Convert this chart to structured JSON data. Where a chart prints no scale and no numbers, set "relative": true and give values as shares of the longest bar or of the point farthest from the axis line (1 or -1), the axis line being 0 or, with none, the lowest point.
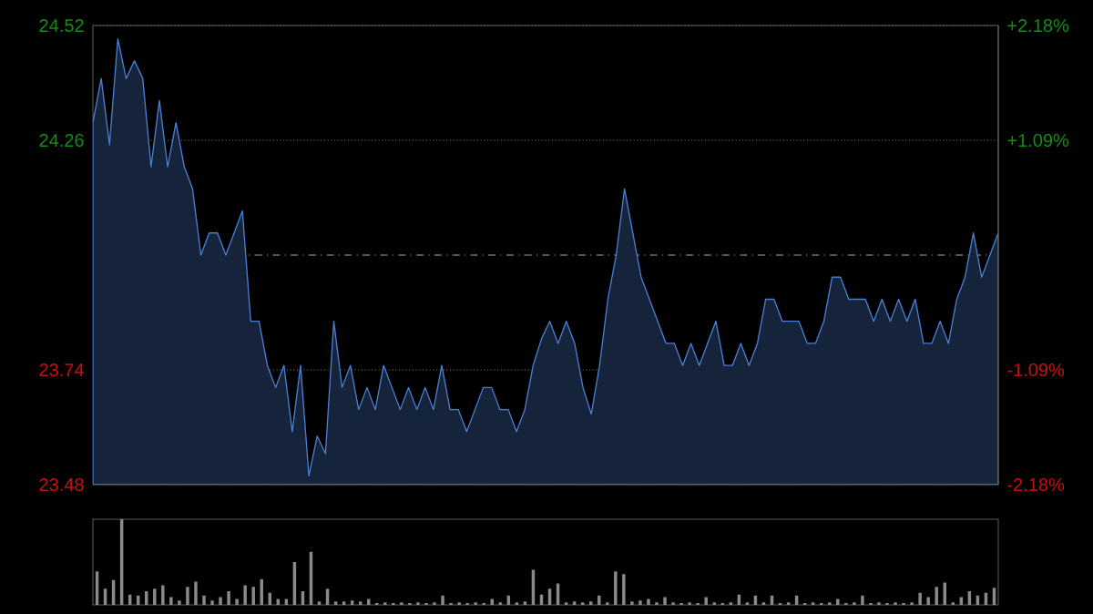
{
  "chart_data": [
    {
      "type": "area",
      "categories": [
        null,
        null,
        null,
        null,
        null,
        null,
        null,
        null,
        null,
        null,
        null,
        null,
        null,
        null,
        null,
        null,
        null,
        null,
        null,
        null,
        null,
        null,
        null,
        null,
        null,
        null,
        null,
        null,
        null,
        null,
        null,
        null,
        null,
        null,
        null,
        null,
        null,
        null,
        null,
        null,
        null,
        null,
        null,
        null,
        null,
        null,
        null,
        null,
        null,
        null,
        null,
        null,
        null,
        null,
        null,
        null,
        null,
        null,
        null,
        null,
        null,
        null,
        null,
        null,
        null,
        null,
        null,
        null,
        null,
        null,
        null,
        null,
        null,
        null,
        null,
        null,
        null,
        null,
        null,
        null,
        null,
        null,
        null,
        null,
        null,
        null,
        null,
        null,
        null,
        null,
        null,
        null,
        null,
        null,
        null,
        null,
        null,
        null,
        null,
        null,
        null,
        null,
        null,
        null,
        null,
        null,
        null,
        null,
        null,
        null
      ],
      "ylim": [
        23.48,
        24.52
      ],
      "yticks": [
        23.48,
        23.74,
        24.26,
        24.52
      ],
      "y2lim": [
        -2.18,
        2.18
      ],
      "y2ticks": [
        {
          "value": -2.18,
          "label": "-2.18%"
        },
        {
          "value": -1.09,
          "label": "-1.09%"
        },
        {
          "value": 1.09,
          "label": "+1.09%"
        },
        {
          "value": 2.18,
          "label": "+2.18%"
        }
      ],
      "grid": "y",
      "ref_lines": [
        {
          "axis": "y",
          "value": 24.0
        }
      ],
      "series": [
        {
          "color": "#4a7fd4",
          "values": [
            24.3,
            24.4,
            24.25,
            24.49,
            24.4,
            24.44,
            24.4,
            24.2,
            24.35,
            24.2,
            24.3,
            24.2,
            24.15,
            24.0,
            24.05,
            24.05,
            24.0,
            24.05,
            24.1,
            23.85,
            23.85,
            23.75,
            23.7,
            23.75,
            23.6,
            23.75,
            23.5,
            23.59,
            23.55,
            23.85,
            23.7,
            23.75,
            23.65,
            23.7,
            23.65,
            23.75,
            23.7,
            23.65,
            23.7,
            23.65,
            23.7,
            23.65,
            23.75,
            23.65,
            23.65,
            23.6,
            23.65,
            23.7,
            23.7,
            23.65,
            23.65,
            23.6,
            23.65,
            23.75,
            23.81,
            23.85,
            23.8,
            23.85,
            23.8,
            23.7,
            23.64,
            23.75,
            23.9,
            24.0,
            24.15,
            24.05,
            23.95,
            23.9,
            23.85,
            23.8,
            23.8,
            23.75,
            23.8,
            23.75,
            23.8,
            23.85,
            23.75,
            23.75,
            23.8,
            23.75,
            23.8,
            23.9,
            23.9,
            23.85,
            23.85,
            23.85,
            23.8,
            23.8,
            23.85,
            23.95,
            23.95,
            23.9,
            23.9,
            23.9,
            23.85,
            23.9,
            23.85,
            23.9,
            23.85,
            23.9,
            23.8,
            23.8,
            23.85,
            23.8,
            23.9,
            23.95,
            24.05,
            23.95,
            24.0,
            24.05
          ]
        }
      ]
    },
    {
      "type": "bar",
      "relative": true,
      "color": "#8a8a8a",
      "categories": [
        null,
        null,
        null,
        null,
        null,
        null,
        null,
        null,
        null,
        null,
        null,
        null,
        null,
        null,
        null,
        null,
        null,
        null,
        null,
        null,
        null,
        null,
        null,
        null,
        null,
        null,
        null,
        null,
        null,
        null,
        null,
        null,
        null,
        null,
        null,
        null,
        null,
        null,
        null,
        null,
        null,
        null,
        null,
        null,
        null,
        null,
        null,
        null,
        null,
        null,
        null,
        null,
        null,
        null,
        null,
        null,
        null,
        null,
        null,
        null,
        null,
        null,
        null,
        null,
        null,
        null,
        null,
        null,
        null,
        null,
        null,
        null,
        null,
        null,
        null,
        null,
        null,
        null,
        null,
        null,
        null,
        null,
        null,
        null,
        null,
        null,
        null,
        null,
        null,
        null,
        null,
        null,
        null,
        null,
        null,
        null,
        null,
        null,
        null,
        null,
        null,
        null,
        null,
        null,
        null,
        null,
        null,
        null,
        null,
        null
      ],
      "values": [
        0.39,
        0.19,
        0.29,
        1,
        0.12,
        0.11,
        0.16,
        0.19,
        0.23,
        0.09,
        0.05,
        0.21,
        0.27,
        0.11,
        0.05,
        0.09,
        0.16,
        0.07,
        0.23,
        0.21,
        0.3,
        0.14,
        0.07,
        0.07,
        0.5,
        0.16,
        0.62,
        0.04,
        0.19,
        0.04,
        0.04,
        0.05,
        0.04,
        0.07,
        0.02,
        0.03,
        0.02,
        0.03,
        0.02,
        0.03,
        0.02,
        0.03,
        0.11,
        0.02,
        0.03,
        0.02,
        0.03,
        0.02,
        0.07,
        0.03,
        0.11,
        0.03,
        0.04,
        0.41,
        0.12,
        0.19,
        0.25,
        0.03,
        0.04,
        0.03,
        0.04,
        0.11,
        0.03,
        0.39,
        0.36,
        0.04,
        0.05,
        0.07,
        0.03,
        0.09,
        0.03,
        0.02,
        0.03,
        0.02,
        0.09,
        0.03,
        0.02,
        0.03,
        0.12,
        0.03,
        0.11,
        0.03,
        0.11,
        0.02,
        0.03,
        0.11,
        0.02,
        0.03,
        0.02,
        0.03,
        0.07,
        0.02,
        0.03,
        0.11,
        0.02,
        0.03,
        0.02,
        0.03,
        0.02,
        0.03,
        0.14,
        0.09,
        0.21,
        0.26,
        0.03,
        0.09,
        0.16,
        0.11,
        0.14,
        0.2
      ]
    }
  ]
}
